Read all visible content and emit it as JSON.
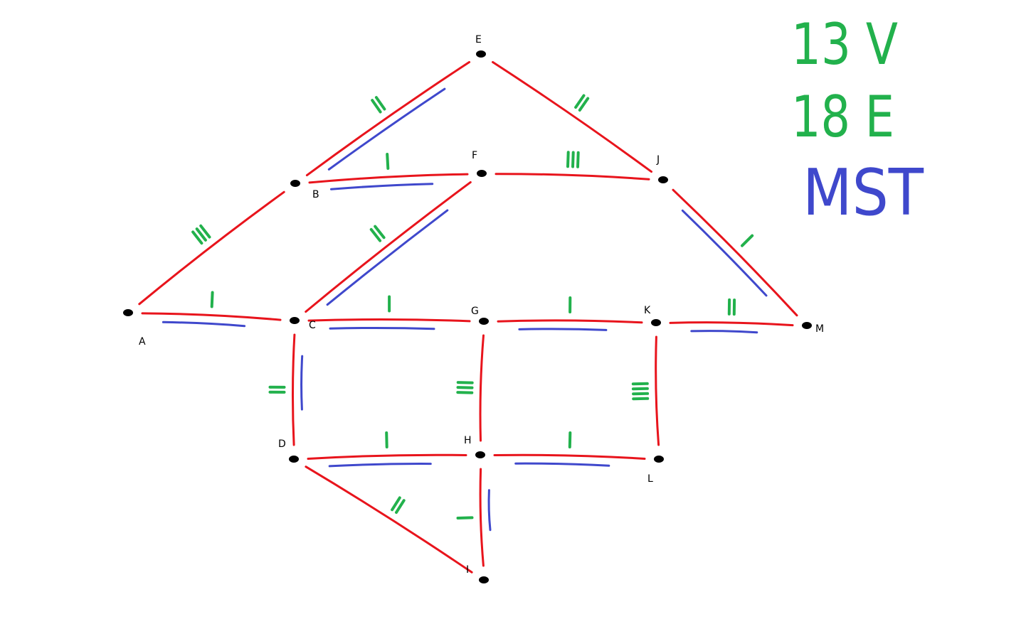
{
  "colors": {
    "edge": "#e8141c",
    "mst": "#3f48cc",
    "weight": "#22b14c",
    "vertex": "#000000"
  },
  "legend": {
    "vertices": "13 V",
    "edges": "18 E",
    "mst": "MST"
  },
  "nodes": [
    {
      "id": "A",
      "label": "A"
    },
    {
      "id": "B",
      "label": "B"
    },
    {
      "id": "C",
      "label": "C"
    },
    {
      "id": "D",
      "label": "D"
    },
    {
      "id": "E",
      "label": "E"
    },
    {
      "id": "F",
      "label": "F"
    },
    {
      "id": "G",
      "label": "G"
    },
    {
      "id": "H",
      "label": "H"
    },
    {
      "id": "I",
      "label": "I"
    },
    {
      "id": "J",
      "label": "J"
    },
    {
      "id": "K",
      "label": "K"
    },
    {
      "id": "L",
      "label": "L"
    },
    {
      "id": "M",
      "label": "M"
    }
  ],
  "edges": [
    {
      "from": "A",
      "to": "B",
      "weight": 3,
      "in_mst": false
    },
    {
      "from": "A",
      "to": "C",
      "weight": 1,
      "in_mst": true
    },
    {
      "from": "B",
      "to": "E",
      "weight": 2,
      "in_mst": true
    },
    {
      "from": "B",
      "to": "F",
      "weight": 1,
      "in_mst": true
    },
    {
      "from": "E",
      "to": "J",
      "weight": 2,
      "in_mst": false
    },
    {
      "from": "F",
      "to": "J",
      "weight": 3,
      "in_mst": false
    },
    {
      "from": "C",
      "to": "F",
      "weight": 2,
      "in_mst": true
    },
    {
      "from": "J",
      "to": "M",
      "weight": 1,
      "in_mst": true
    },
    {
      "from": "C",
      "to": "G",
      "weight": 1,
      "in_mst": true
    },
    {
      "from": "G",
      "to": "K",
      "weight": 1,
      "in_mst": true
    },
    {
      "from": "K",
      "to": "M",
      "weight": 2,
      "in_mst": true
    },
    {
      "from": "C",
      "to": "D",
      "weight": 2,
      "in_mst": true
    },
    {
      "from": "G",
      "to": "H",
      "weight": 3,
      "in_mst": false
    },
    {
      "from": "K",
      "to": "L",
      "weight": 4,
      "in_mst": false
    },
    {
      "from": "D",
      "to": "H",
      "weight": 1,
      "in_mst": true
    },
    {
      "from": "H",
      "to": "L",
      "weight": 1,
      "in_mst": true
    },
    {
      "from": "D",
      "to": "I",
      "weight": 2,
      "in_mst": false
    },
    {
      "from": "H",
      "to": "I",
      "weight": 1,
      "in_mst": true
    }
  ]
}
